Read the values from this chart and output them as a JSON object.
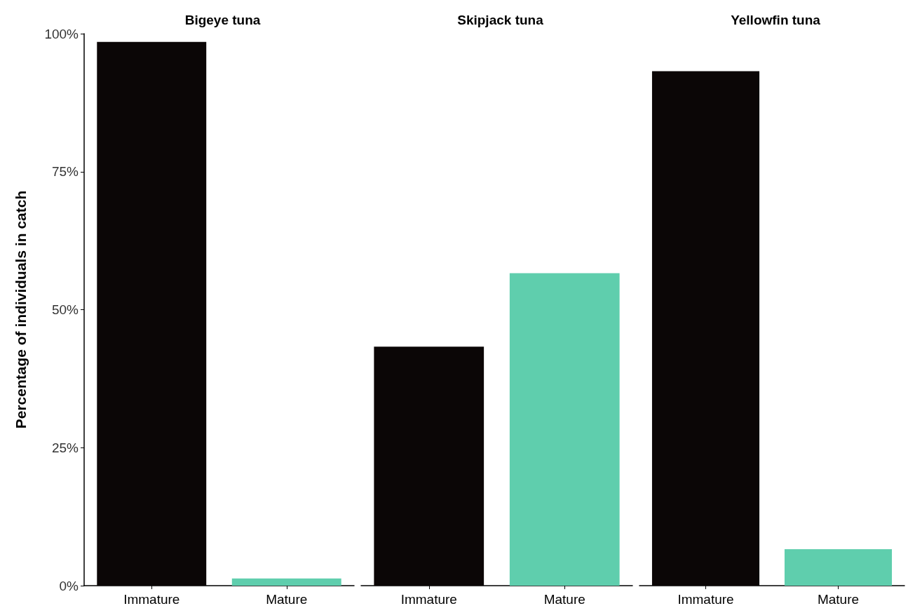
{
  "chart_data": [
    {
      "type": "bar",
      "title": "Bigeye tuna",
      "ylabel": "Percentage of individuals in catch",
      "categories": [
        "Immature",
        "Mature"
      ],
      "values": [
        98.5,
        1.3
      ],
      "colors": [
        "#0b0606",
        "#5fcead"
      ],
      "ylim": [
        0,
        100
      ],
      "yticks": [
        {
          "value": 0,
          "label": "0%"
        },
        {
          "value": 25,
          "label": "25%"
        },
        {
          "value": 50,
          "label": "50%"
        },
        {
          "value": 75,
          "label": "75%"
        },
        {
          "value": 100,
          "label": "100%"
        }
      ],
      "grid": false
    },
    {
      "type": "bar",
      "title": "Skipjack tuna",
      "categories": [
        "Immature",
        "Mature"
      ],
      "values": [
        43.3,
        56.6
      ],
      "colors": [
        "#0b0606",
        "#5fcead"
      ],
      "ylim": [
        0,
        100
      ],
      "grid": false,
      "tick_labels": "x"
    },
    {
      "type": "bar",
      "title": "Yellowfin tuna",
      "categories": [
        "Immature",
        "Mature"
      ],
      "values": [
        93.2,
        6.6
      ],
      "colors": [
        "#0b0606",
        "#5fcead"
      ],
      "ylim": [
        0,
        100
      ],
      "grid": false,
      "tick_labels": "x"
    }
  ]
}
